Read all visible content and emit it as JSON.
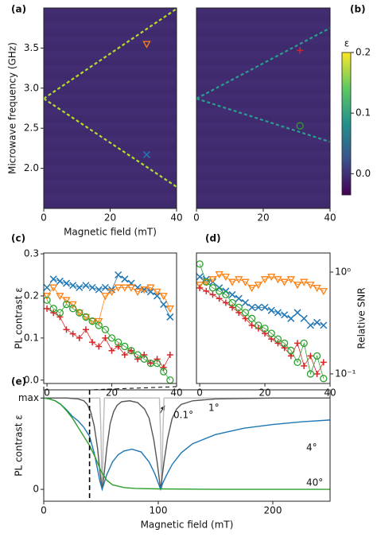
{
  "chart_data": [
    {
      "type": "heatmap",
      "label": "(a)",
      "xlabel": "Magnetic field (mT)",
      "ylabel": "Microwave frequency (GHz)",
      "xlim": [
        0,
        40
      ],
      "xticks": [
        0,
        20,
        40
      ],
      "ylim": [
        1.5,
        4.0
      ],
      "yticks": [
        {
          "value": 2,
          "label": "2.0"
        },
        2.5,
        {
          "value": 3,
          "label": "3.0"
        },
        3.5
      ],
      "series": [
        {
          "x": [
            0,
            40
          ],
          "values": [
            2.87,
            3.99
          ],
          "color": "#b5de2b"
        },
        {
          "x": [
            0,
            40
          ],
          "values": [
            2.87,
            1.77
          ],
          "color": "#b5de2b"
        }
      ],
      "markers": [
        {
          "x": 31,
          "y": 3.55,
          "color": "#ff7f0e",
          "symbol": "triangle"
        },
        {
          "x": 31,
          "y": 2.17,
          "color": "#1f77b4",
          "symbol": "x"
        }
      ]
    },
    {
      "type": "heatmap",
      "label": "(b)",
      "xlim": [
        0,
        40
      ],
      "xticks": [
        0,
        20,
        40
      ],
      "ylim": [
        1.5,
        4.0
      ],
      "series": [
        {
          "x": [
            0,
            40
          ],
          "values": [
            2.87,
            3.75
          ],
          "color": "#2a9d8f"
        },
        {
          "x": [
            0,
            40
          ],
          "values": [
            2.87,
            2.33
          ],
          "color": "#2a9d8f"
        }
      ],
      "markers": [
        {
          "x": 31,
          "y": 3.47,
          "color": "#d62728",
          "symbol": "plus"
        },
        {
          "x": 31,
          "y": 2.53,
          "color": "#2ca02c",
          "symbol": "circle"
        }
      ],
      "colorbar": {
        "label": "ε",
        "lim": [
          -0.035,
          0.2
        ],
        "ticks": [
          {
            "value": 0,
            "label": "0.0"
          },
          0.1,
          0.2
        ]
      }
    },
    {
      "type": "scatter",
      "label": "(c)",
      "ylabel": "PL contrast ε",
      "xlim": [
        -1,
        40
      ],
      "xticks": [
        0,
        20,
        40
      ],
      "ylim": [
        -0.008,
        0.302
      ],
      "yticks": [
        {
          "value": 0,
          "label": "0.0"
        },
        0.1,
        0.2,
        0.3
      ],
      "x": [
        0,
        2,
        4,
        6,
        8,
        10,
        12,
        14,
        16,
        18,
        20,
        22,
        24,
        26,
        28,
        30,
        32,
        34,
        36,
        38
      ],
      "series": [
        {
          "color": "#1f77b4",
          "symbol": "x",
          "values": [
            0.22,
            0.24,
            0.235,
            0.23,
            0.225,
            0.22,
            0.225,
            0.22,
            0.215,
            0.22,
            0.215,
            0.25,
            0.24,
            0.23,
            0.22,
            0.215,
            0.21,
            0.2,
            0.18,
            0.15
          ]
        },
        {
          "color": "#ff7f0e",
          "symbol": "triangle",
          "values": [
            0.2,
            0.22,
            0.2,
            0.19,
            0.18,
            0.16,
            0.15,
            0.14,
            0.14,
            0.2,
            0.21,
            0.22,
            0.22,
            0.22,
            0.21,
            0.215,
            0.22,
            0.21,
            0.2,
            0.17
          ]
        },
        {
          "color": "#d62728",
          "symbol": "plus",
          "values": [
            0.17,
            0.16,
            0.15,
            0.12,
            0.11,
            0.1,
            0.12,
            0.09,
            0.08,
            0.1,
            0.07,
            0.08,
            0.06,
            0.07,
            0.05,
            0.06,
            0.04,
            0.05,
            0.03,
            0.06
          ]
        },
        {
          "color": "#2ca02c",
          "symbol": "circle",
          "values": [
            0.19,
            0.17,
            0.16,
            0.18,
            0.17,
            0.16,
            0.15,
            0.14,
            0.13,
            0.12,
            0.1,
            0.09,
            0.08,
            0.07,
            0.06,
            0.05,
            0.04,
            0.04,
            0.02,
            0.0
          ]
        }
      ]
    },
    {
      "type": "scatter",
      "label": "(d)",
      "y2label": "Relative SNR",
      "xlim": [
        -1,
        40
      ],
      "xticks": [
        0,
        20,
        40
      ],
      "y2lim": [
        0.0805,
        1.54
      ],
      "y2scale": "log",
      "y2ticks": [
        {
          "value": 0.1,
          "label": "10⁻¹"
        },
        {
          "value": 1,
          "label": "10⁰"
        }
      ],
      "x": [
        0,
        2,
        4,
        6,
        8,
        10,
        12,
        14,
        16,
        18,
        20,
        22,
        24,
        26,
        28,
        30,
        32,
        34,
        36,
        38
      ],
      "series": [
        {
          "color": "#1f77b4",
          "symbol": "x",
          "axis": "y2",
          "values": [
            0.9,
            0.85,
            0.8,
            0.7,
            0.65,
            0.6,
            0.55,
            0.5,
            0.45,
            0.45,
            0.45,
            0.42,
            0.4,
            0.38,
            0.35,
            0.4,
            0.35,
            0.3,
            0.32,
            0.3
          ]
        },
        {
          "color": "#ff7f0e",
          "symbol": "triangle",
          "axis": "y2",
          "values": [
            0.75,
            0.8,
            0.85,
            0.95,
            0.9,
            0.8,
            0.85,
            0.8,
            0.7,
            0.75,
            0.85,
            0.9,
            0.85,
            0.8,
            0.85,
            0.75,
            0.8,
            0.75,
            0.7,
            0.65
          ]
        },
        {
          "color": "#d62728",
          "symbol": "plus",
          "axis": "y2",
          "values": [
            0.7,
            0.65,
            0.6,
            0.55,
            0.5,
            0.45,
            0.4,
            0.35,
            0.3,
            0.28,
            0.25,
            0.22,
            0.2,
            0.18,
            0.15,
            0.2,
            0.12,
            0.15,
            0.1,
            0.13
          ]
        },
        {
          "color": "#2ca02c",
          "symbol": "circle",
          "axis": "y2",
          "values": [
            1.2,
            0.8,
            0.7,
            0.65,
            0.6,
            0.5,
            0.45,
            0.4,
            0.35,
            0.3,
            0.28,
            0.25,
            0.22,
            0.2,
            0.17,
            0.13,
            0.2,
            0.1,
            0.15,
            0.09
          ]
        }
      ]
    },
    {
      "type": "line",
      "label": "(e)",
      "xlabel": "Magnetic field (mT)",
      "ylabel": "PL contrast ε",
      "xlim": [
        0,
        250
      ],
      "xticks": [
        0,
        100,
        200
      ],
      "ylim": [
        -0.13,
        1.09
      ],
      "yticks": [
        0,
        {
          "value": 1,
          "label": "max"
        }
      ],
      "vline": 40,
      "series": [
        {
          "name": "0.1°",
          "color": "#bbbbbb",
          "x": [
            0,
            49,
            50,
            50.5,
            51,
            51.5,
            52,
            53,
            101,
            102,
            102.5,
            103,
            103.5,
            104,
            105,
            250
          ],
          "values": [
            1,
            1,
            0.6,
            0.25,
            0,
            0.25,
            0.6,
            1,
            1,
            0.6,
            0.25,
            0,
            0.25,
            0.6,
            1,
            1
          ]
        },
        {
          "name": "1°",
          "color": "#555555",
          "x": [
            0,
            20,
            30,
            35,
            38,
            41,
            44,
            47,
            49,
            51,
            53,
            55,
            58,
            61,
            64,
            68,
            75,
            82,
            88,
            92,
            96,
            99,
            102,
            105,
            108,
            112,
            116,
            120,
            130,
            150,
            200,
            250
          ],
          "values": [
            1,
            1,
            0.99,
            0.97,
            0.93,
            0.85,
            0.7,
            0.45,
            0.2,
            0,
            0.2,
            0.45,
            0.72,
            0.85,
            0.92,
            0.96,
            0.97,
            0.95,
            0.88,
            0.78,
            0.55,
            0.3,
            0,
            0.3,
            0.55,
            0.77,
            0.88,
            0.93,
            0.97,
            0.99,
            1,
            1
          ]
        },
        {
          "name": "4°",
          "color": "#1f77b4",
          "x": [
            0,
            5,
            10,
            15,
            20,
            25,
            30,
            35,
            40,
            44,
            47,
            49,
            51,
            53,
            55,
            60,
            65,
            70,
            77,
            85,
            92,
            97,
            100,
            102,
            104,
            107,
            112,
            120,
            130,
            150,
            175,
            200,
            225,
            250
          ],
          "values": [
            1,
            0.99,
            0.97,
            0.93,
            0.87,
            0.8,
            0.75,
            0.68,
            0.58,
            0.4,
            0.22,
            0.09,
            0,
            0.08,
            0.16,
            0.3,
            0.38,
            0.42,
            0.44,
            0.41,
            0.3,
            0.17,
            0.07,
            0,
            0.07,
            0.15,
            0.27,
            0.4,
            0.5,
            0.6,
            0.67,
            0.71,
            0.74,
            0.76
          ]
        },
        {
          "name": "40°",
          "color": "#2ca02c",
          "x": [
            0,
            5,
            10,
            15,
            20,
            25,
            30,
            35,
            40,
            45,
            50,
            55,
            60,
            70,
            80,
            100,
            150,
            200,
            250
          ],
          "values": [
            1,
            0.99,
            0.97,
            0.93,
            0.86,
            0.78,
            0.68,
            0.58,
            0.48,
            0.35,
            0.2,
            0.1,
            0.05,
            0.02,
            0.01,
            0.005,
            0,
            0,
            0
          ]
        }
      ]
    }
  ]
}
